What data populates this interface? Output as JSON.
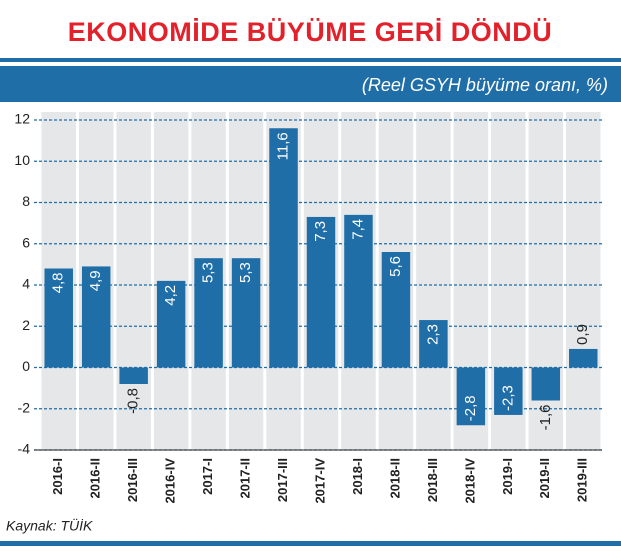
{
  "chart_data": {
    "type": "bar",
    "title": "EKONOMİDE BÜYÜME GERİ DÖNDÜ",
    "subtitle": "(Reel GSYH büyüme oranı, %)",
    "source": "Kaynak: TÜİK",
    "categories": [
      "2016-I",
      "2016-II",
      "2016-III",
      "2016-IV",
      "2017-I",
      "2017-II",
      "2017-III",
      "2017-IV",
      "2018-I",
      "2018-II",
      "2018-III",
      "2018-IV",
      "2019-I",
      "2019-II",
      "2019-III"
    ],
    "values": [
      4.8,
      4.9,
      -0.8,
      4.2,
      5.3,
      5.3,
      11.6,
      7.3,
      7.4,
      5.6,
      2.3,
      -2.8,
      -2.3,
      -1.6,
      0.9
    ],
    "value_labels": [
      "4,8",
      "4,9",
      "-0,8",
      "4,2",
      "5,3",
      "5,3",
      "11,6",
      "7,3",
      "7,4",
      "5,6",
      "2,3",
      "-2,8",
      "-2,3",
      "-1,6",
      "0,9"
    ],
    "color": "#1f6ea8",
    "ylim": [
      -4,
      12
    ],
    "yticks": [
      -4,
      -2,
      0,
      2,
      4,
      6,
      8,
      10,
      12
    ],
    "grid": true
  }
}
